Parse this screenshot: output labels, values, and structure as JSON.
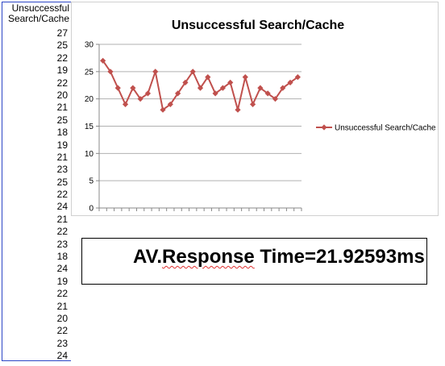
{
  "column": {
    "header_line1": "Unsuccessful",
    "header_line2": "Search/Cache",
    "values": [
      "27",
      "25",
      "22",
      "19",
      "22",
      "20",
      "21",
      "25",
      "18",
      "19",
      "21",
      "23",
      "25",
      "22",
      "24",
      "21",
      "22",
      "23",
      "18",
      "24",
      "19",
      "22",
      "21",
      "20",
      "22",
      "23",
      "24"
    ]
  },
  "response": {
    "prefix": "AV.",
    "underlined": "Response",
    "suffix": " Time=21.92593ms"
  },
  "chart_data": {
    "type": "line",
    "title": "Unsuccessful Search/Cache",
    "xlabel": "",
    "ylabel": "",
    "ylim": [
      0,
      30
    ],
    "yticks": [
      0,
      5,
      10,
      15,
      20,
      25,
      30
    ],
    "x": [
      1,
      2,
      3,
      4,
      5,
      6,
      7,
      8,
      9,
      10,
      11,
      12,
      13,
      14,
      15,
      16,
      17,
      18,
      19,
      20,
      21,
      22,
      23,
      24,
      25,
      26,
      27
    ],
    "series": [
      {
        "name": "Unsuccessful Search/Cache",
        "color": "#c0504d",
        "values": [
          27,
          25,
          22,
          19,
          22,
          20,
          21,
          25,
          18,
          19,
          21,
          23,
          25,
          22,
          24,
          21,
          22,
          23,
          18,
          24,
          19,
          22,
          21,
          20,
          22,
          23,
          24
        ]
      }
    ],
    "grid": "horizontal",
    "legend": "right"
  }
}
